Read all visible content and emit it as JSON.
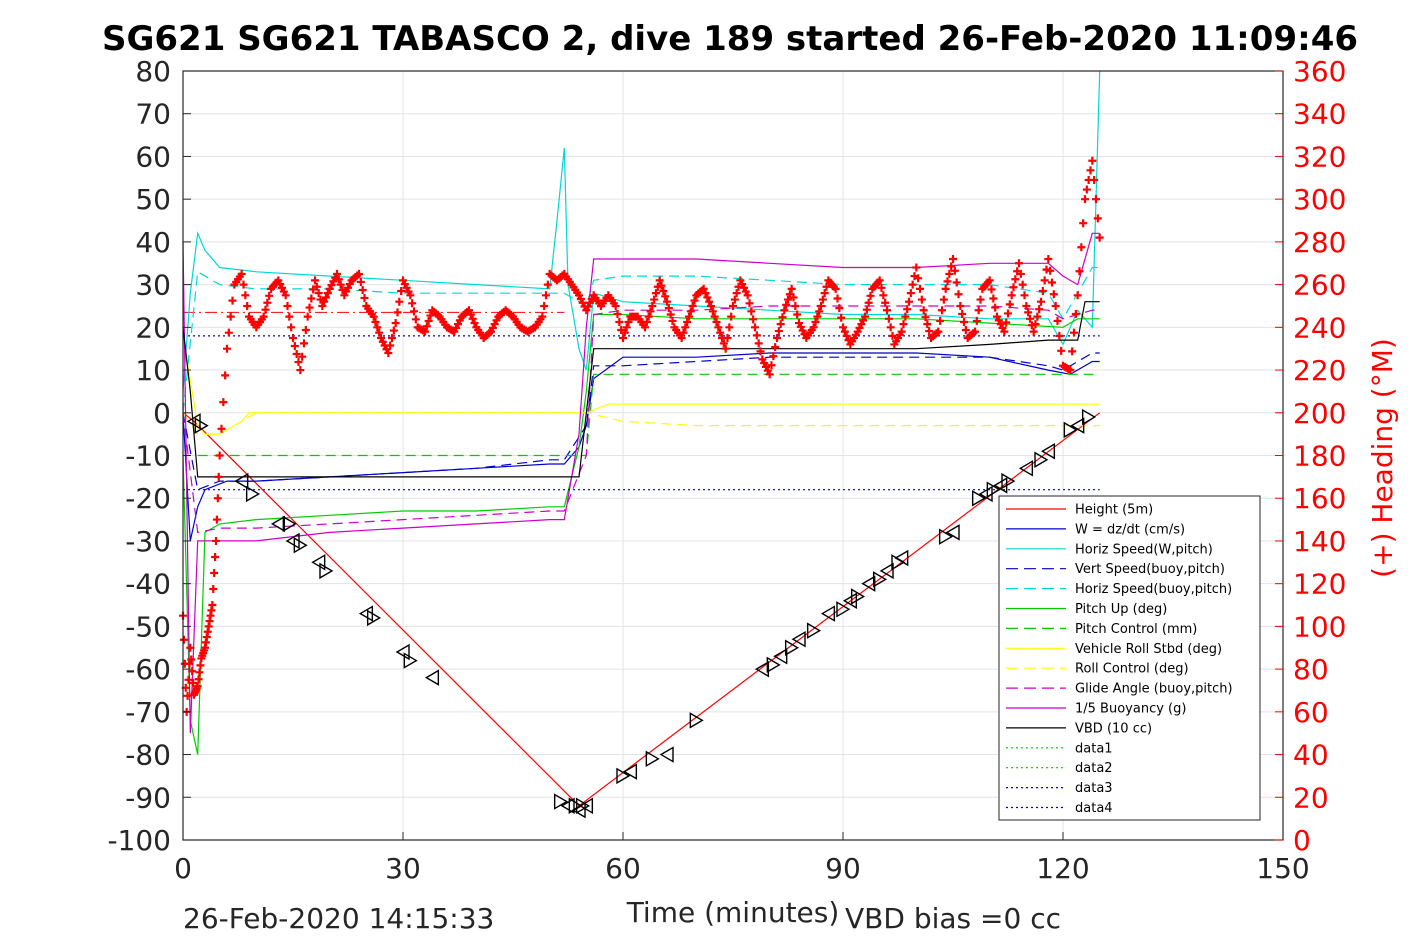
{
  "chart_data": {
    "type": "line",
    "title": "SG621 SG621 TABASCO 2, dive 189 started 26-Feb-2020 11:09:46",
    "xlabel": "Time (minutes)",
    "ylabel_right": "(+) Heading (°M)",
    "xlim": [
      0,
      150
    ],
    "ylim": [
      -100,
      80
    ],
    "ylim_right": [
      0,
      360
    ],
    "x_ticks": [
      "0",
      "30",
      "60",
      "90",
      "120",
      "150"
    ],
    "y_ticks": [
      "80",
      "70",
      "60",
      "50",
      "40",
      "30",
      "20",
      "10",
      "0",
      "-10",
      "-20",
      "-30",
      "-40",
      "-50",
      "-60",
      "-70",
      "-80",
      "-90",
      "-100"
    ],
    "y_right_ticks": [
      "360",
      "340",
      "320",
      "300",
      "280",
      "260",
      "240",
      "220",
      "200",
      "180",
      "160",
      "140",
      "120",
      "100",
      "80",
      "60",
      "40",
      "20",
      "0"
    ],
    "grid": true,
    "legend_position": "bottom-right",
    "footer_left": "26-Feb-2020 14:15:33",
    "footer_right": "VBD bias =0 cc",
    "legend": [
      {
        "label": "Height (5m)",
        "color": "#ff0000",
        "dash": ""
      },
      {
        "label": "W = dz/dt (cm/s)",
        "color": "#0000cc",
        "dash": ""
      },
      {
        "label": "Horiz Speed(W,pitch)",
        "color": "#00d8d8",
        "dash": ""
      },
      {
        "label": "Vert Speed(buoy,pitch)",
        "color": "#0000cc",
        "dash": "12,6"
      },
      {
        "label": "Horiz Speed(buoy,pitch)",
        "color": "#00d8d8",
        "dash": "12,6"
      },
      {
        "label": "Pitch Up (deg)",
        "color": "#00cc00",
        "dash": ""
      },
      {
        "label": "Pitch Control (mm)",
        "color": "#00cc00",
        "dash": "12,6"
      },
      {
        "label": "Vehicle Roll Stbd (deg)",
        "color": "#ffff00",
        "dash": ""
      },
      {
        "label": "Roll Control (deg)",
        "color": "#ffff00",
        "dash": "12,6"
      },
      {
        "label": "Glide Angle (buoy,pitch)",
        "color": "#cc00cc",
        "dash": "12,6"
      },
      {
        "label": "1/5 Buoyancy (g)",
        "color": "#cc00cc",
        "dash": ""
      },
      {
        "label": "VBD (10 cc)",
        "color": "#000000",
        "dash": ""
      },
      {
        "label": "data1",
        "color": "#00cc00",
        "dash": "2,3"
      },
      {
        "label": "data2",
        "color": "#00cc00",
        "dash": "2,3"
      },
      {
        "label": "data3",
        "color": "#0000cc",
        "dash": "2,3"
      },
      {
        "label": "data4",
        "color": "#0000cc",
        "dash": "2,3"
      }
    ],
    "series": [
      {
        "name": "Height (5m)",
        "color": "#ff0000",
        "x": [
          0,
          1.5,
          54,
          125
        ],
        "y": [
          0,
          -2,
          -92,
          0
        ]
      },
      {
        "name": "W = dz/dt (cm/s)",
        "color": "#0000cc",
        "x": [
          0,
          1,
          2,
          3,
          6,
          10,
          20,
          30,
          40,
          50,
          52,
          54,
          55,
          56,
          60,
          70,
          80,
          90,
          100,
          110,
          118,
          121,
          124,
          125
        ],
        "y": [
          0,
          -30,
          -22,
          -18,
          -16,
          -16,
          -15,
          -14,
          -13,
          -12,
          -12,
          -8,
          -3,
          8,
          13,
          13,
          14,
          14,
          14,
          13,
          10,
          9,
          12,
          12
        ]
      },
      {
        "name": "Horiz Speed(W,pitch)",
        "color": "#00d8d8",
        "x": [
          0,
          1,
          2,
          3,
          5,
          10,
          20,
          30,
          40,
          50,
          51,
          52,
          52.5,
          53,
          54,
          55,
          56,
          60,
          70,
          80,
          90,
          100,
          110,
          118,
          120,
          122,
          124,
          125
        ],
        "y": [
          5,
          28,
          42,
          38,
          34,
          33,
          32,
          31,
          30,
          29,
          45,
          62,
          30,
          25,
          15,
          10,
          28,
          26,
          25,
          24,
          23,
          23,
          22,
          22,
          16,
          24,
          20,
          80
        ]
      },
      {
        "name": "Vert Speed(buoy,pitch)",
        "color": "#0000cc",
        "dash": "10,6",
        "x": [
          0,
          2,
          5,
          10,
          20,
          30,
          40,
          50,
          52,
          55,
          56,
          60,
          70,
          80,
          90,
          100,
          110,
          118,
          120,
          124,
          125
        ],
        "y": [
          0,
          -18,
          -16,
          -16,
          -15,
          -14,
          -13,
          -11,
          -11,
          -3,
          11,
          11,
          12,
          13,
          13,
          13,
          13,
          11,
          10,
          14,
          14
        ]
      },
      {
        "name": "Horiz Speed(buoy,pitch)",
        "color": "#00d8d8",
        "dash": "10,6",
        "x": [
          0,
          2,
          5,
          10,
          20,
          30,
          40,
          50,
          52,
          55,
          56,
          60,
          70,
          80,
          90,
          100,
          110,
          118,
          120,
          124,
          125
        ],
        "y": [
          0,
          33,
          30,
          29,
          29,
          28,
          28,
          28,
          28,
          25,
          31,
          32,
          32,
          31,
          30,
          30,
          30,
          28,
          22,
          34,
          34
        ]
      },
      {
        "name": "Pitch Up (deg)",
        "color": "#00cc00",
        "x": [
          0,
          1,
          2,
          3,
          5,
          10,
          20,
          30,
          40,
          50,
          52,
          54,
          55,
          56,
          60,
          70,
          80,
          90,
          100,
          110,
          120,
          122,
          125
        ],
        "y": [
          -10,
          -72,
          -80,
          -28,
          -26,
          -25,
          -24,
          -23,
          -23,
          -22,
          -22,
          -8,
          5,
          23,
          23,
          22,
          22,
          22,
          22,
          21,
          20,
          22,
          22
        ]
      },
      {
        "name": "Pitch Control (mm)",
        "color": "#00cc00",
        "dash": "10,6",
        "x": [
          2,
          55,
          56,
          125
        ],
        "y": [
          -10,
          -10,
          9,
          9
        ]
      },
      {
        "name": "Vehicle Roll Stbd (deg)",
        "color": "#ffff00",
        "x": [
          0,
          2,
          3,
          5,
          7,
          8,
          9,
          10,
          12,
          15,
          20,
          25,
          30,
          35,
          40,
          45,
          50,
          52,
          55,
          58,
          60,
          70,
          80,
          90,
          100,
          110,
          115,
          120,
          125
        ],
        "y": [
          18,
          -3,
          -5,
          -5,
          -3,
          -2,
          0,
          0,
          0,
          0,
          0,
          0,
          0,
          0,
          0,
          0,
          0,
          0,
          0,
          2,
          2,
          2,
          2,
          2,
          2,
          2,
          2,
          2,
          2
        ]
      },
      {
        "name": "Roll Control (deg)",
        "color": "#ffff00",
        "dash": "10,6",
        "x": [
          0,
          2,
          5,
          10,
          20,
          30,
          40,
          50,
          55,
          60,
          70,
          80,
          90,
          100,
          110,
          120,
          125
        ],
        "y": [
          0,
          -5,
          -5,
          0,
          0,
          0,
          0,
          0,
          0,
          -2,
          -3,
          -3,
          -3,
          -3,
          -3,
          -3,
          -3
        ]
      },
      {
        "name": "Glide Angle (buoy,pitch)",
        "color": "#cc00cc",
        "dash": "10,6",
        "x": [
          0,
          2,
          5,
          10,
          20,
          30,
          40,
          50,
          52,
          55,
          56,
          60,
          70,
          80,
          90,
          100,
          110,
          118,
          120,
          124,
          125
        ],
        "y": [
          0,
          -28,
          -27,
          -27,
          -26,
          -25,
          -24,
          -23,
          -23,
          -10,
          23,
          24,
          24,
          25,
          25,
          25,
          25,
          24,
          22,
          24,
          24
        ]
      },
      {
        "name": "1/5 Buoyancy (g)",
        "color": "#cc00cc",
        "x": [
          0,
          1,
          2,
          3,
          5,
          10,
          20,
          30,
          40,
          50,
          52,
          54,
          55,
          56,
          60,
          70,
          80,
          90,
          100,
          110,
          118,
          120,
          122,
          124,
          125
        ],
        "y": [
          40,
          -75,
          -30,
          -30,
          -30,
          -30,
          -28,
          -27,
          -26,
          -25,
          -25,
          -5,
          20,
          36,
          36,
          36,
          35,
          34,
          34,
          35,
          35,
          32,
          30,
          42,
          42
        ]
      },
      {
        "name": "VBD (10 cc)",
        "color": "#000000",
        "x": [
          0,
          1,
          2,
          52,
          54,
          56,
          57,
          100,
          110,
          118,
          122,
          123,
          125
        ],
        "y": [
          20,
          5,
          -15,
          -15,
          -15,
          15,
          15,
          15,
          16,
          17,
          17,
          26,
          26
        ]
      },
      {
        "name": "data1",
        "color": "#00cc00",
        "dash": "2,3",
        "x": [],
        "y": []
      },
      {
        "name": "data2",
        "color": "#00cc00",
        "dash": "2,3",
        "x": [],
        "y": []
      },
      {
        "name": "data3",
        "color": "#0000cc",
        "dash": "2,3",
        "x": [
          0,
          125
        ],
        "y": [
          18,
          18
        ]
      },
      {
        "name": "data4",
        "color": "#0000cc",
        "dash": "2,3",
        "x": [
          0,
          125
        ],
        "y": [
          -18,
          -18
        ]
      }
    ],
    "reference_line": {
      "color": "#ff0000",
      "y": 23.5,
      "x": [
        0,
        52
      ]
    },
    "heading": {
      "color": "#ff0000",
      "axis": "right",
      "x": [
        0,
        0.5,
        1,
        1.5,
        2,
        2.5,
        3,
        3.5,
        4,
        4.5,
        5,
        6,
        7,
        8,
        9,
        10,
        11,
        12,
        13,
        14,
        15,
        16,
        17,
        18,
        19,
        20,
        21,
        22,
        23,
        24,
        25,
        26,
        27,
        28,
        29,
        30,
        31,
        32,
        33,
        34,
        35,
        36,
        37,
        38,
        39,
        40,
        41,
        42,
        43,
        44,
        45,
        46,
        47,
        48,
        49,
        50,
        51,
        52,
        53,
        54,
        55,
        56,
        57,
        58,
        59,
        60,
        61,
        62,
        63,
        64,
        65,
        66,
        67,
        68,
        69,
        70,
        71,
        72,
        73,
        74,
        75,
        76,
        77,
        78,
        79,
        80,
        81,
        82,
        83,
        84,
        85,
        86,
        87,
        88,
        89,
        90,
        91,
        92,
        93,
        94,
        95,
        96,
        97,
        98,
        99,
        100,
        101,
        102,
        103,
        104,
        105,
        106,
        107,
        108,
        109,
        110,
        111,
        112,
        113,
        114,
        115,
        116,
        117,
        118,
        119,
        120,
        121,
        122,
        123,
        124,
        125
      ],
      "y": [
        105,
        60,
        90,
        68,
        72,
        85,
        90,
        100,
        110,
        140,
        180,
        230,
        260,
        265,
        245,
        240,
        245,
        258,
        262,
        255,
        235,
        220,
        245,
        262,
        250,
        258,
        265,
        255,
        262,
        265,
        250,
        245,
        235,
        228,
        242,
        262,
        255,
        240,
        238,
        248,
        245,
        240,
        238,
        245,
        248,
        240,
        235,
        238,
        245,
        248,
        245,
        240,
        238,
        240,
        245,
        265,
        262,
        265,
        260,
        255,
        248,
        255,
        250,
        255,
        250,
        235,
        245,
        245,
        240,
        250,
        262,
        252,
        240,
        235,
        245,
        255,
        258,
        250,
        240,
        230,
        250,
        262,
        255,
        240,
        225,
        218,
        235,
        248,
        258,
        242,
        235,
        240,
        250,
        262,
        258,
        240,
        232,
        238,
        245,
        258,
        262,
        248,
        232,
        238,
        252,
        268,
        248,
        235,
        238,
        258,
        272,
        250,
        235,
        238,
        258,
        262,
        245,
        238,
        255,
        270,
        250,
        238,
        252,
        272,
        250,
        222,
        220,
        255,
        300,
        318,
        282
      ]
    },
    "markers": {
      "x": [
        1.5,
        2.5,
        8,
        9.5,
        13,
        14.5,
        15,
        16,
        18.5,
        19.5,
        25,
        26,
        30,
        31,
        34,
        51.5,
        52.5,
        53.5,
        54,
        54.5,
        55,
        60,
        61,
        64,
        66,
        70,
        79,
        80.5,
        81.5,
        83,
        84,
        86,
        88,
        90,
        91,
        92,
        93.5,
        95,
        96,
        97.5,
        98,
        104,
        105,
        108.5,
        109.5,
        110.5,
        111.5,
        112.5,
        115,
        117,
        118,
        121,
        122,
        123.5
      ],
      "y": [
        -2,
        -3,
        -16,
        -19,
        -26,
        -26,
        -30,
        -31,
        -35,
        -37,
        -47,
        -48,
        -56,
        -58,
        -62,
        -91,
        -92,
        -92,
        -93,
        -92,
        -92,
        -85,
        -84,
        -81,
        -80,
        -72,
        -60,
        -59,
        -57,
        -55,
        -53,
        -51,
        -47,
        -46,
        -44,
        -43,
        -40,
        -39,
        -37,
        -35,
        -34,
        -29,
        -28,
        -20,
        -19,
        -18,
        -17,
        -16,
        -13,
        -11,
        -9,
        -4,
        -3,
        -1
      ]
    }
  }
}
